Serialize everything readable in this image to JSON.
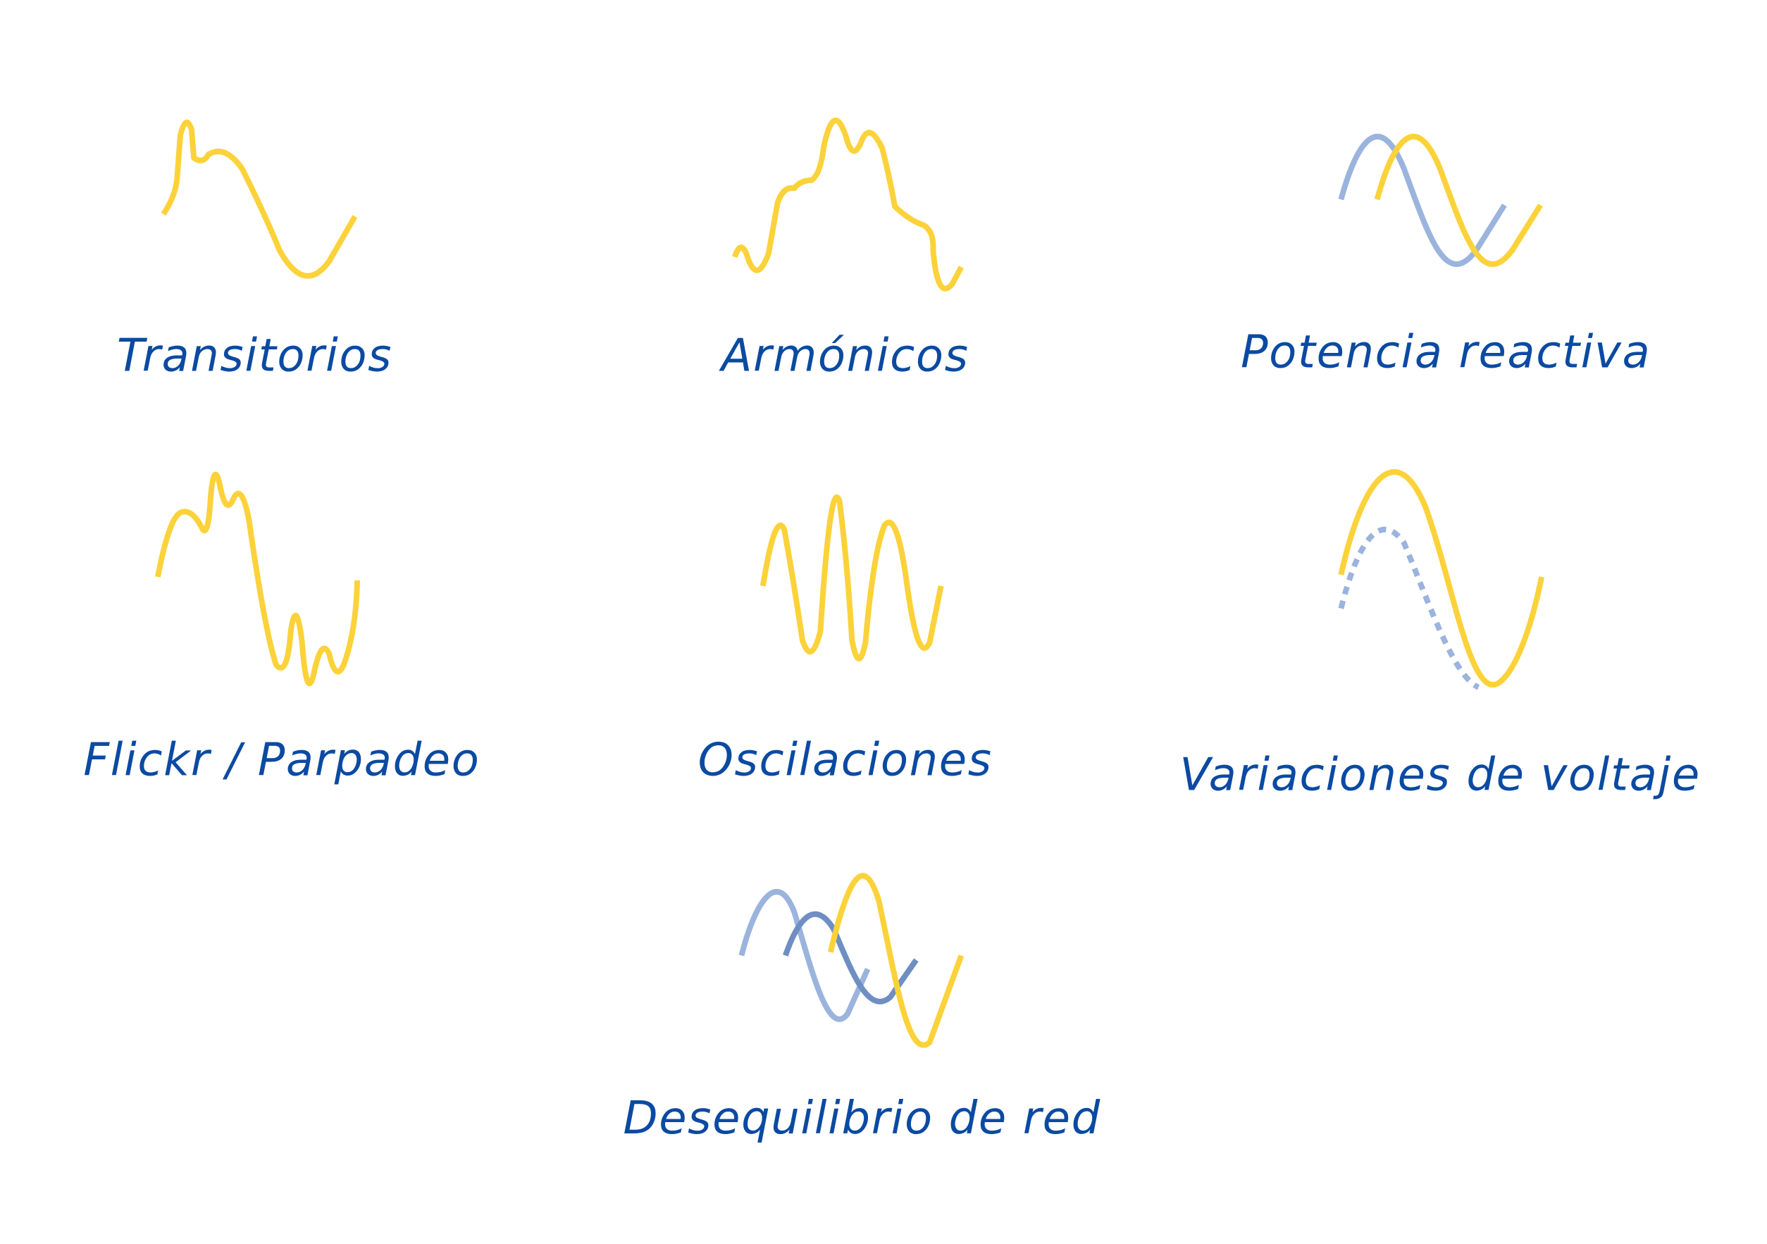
{
  "items": [
    {
      "label": "Transitorios"
    },
    {
      "label": "Armónicos"
    },
    {
      "label": "Potencia reactiva"
    },
    {
      "label": "Flickr / Parpadeo"
    },
    {
      "label": "Oscilaciones"
    },
    {
      "label": "Variaciones de voltaje"
    },
    {
      "label": "Desequilibrio de red"
    }
  ]
}
